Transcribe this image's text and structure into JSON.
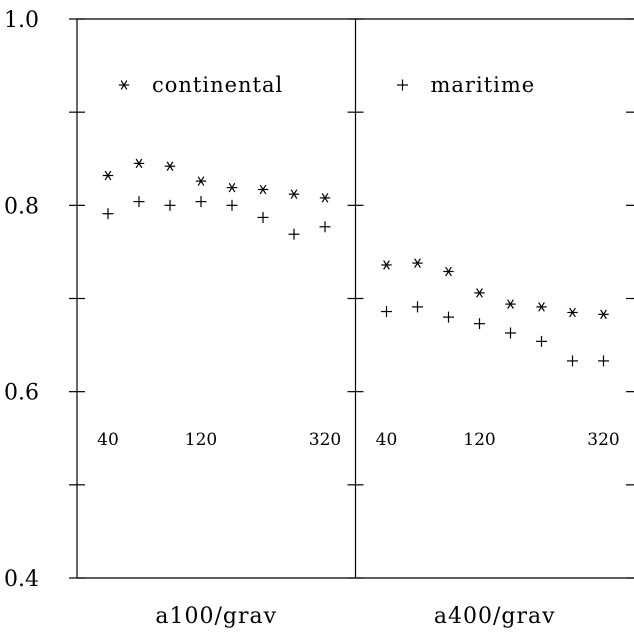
{
  "chart_data": {
    "type": "scatter",
    "ylim": [
      0.4,
      1.0
    ],
    "y_ticks": [
      "0.4",
      "0.6",
      "0.8",
      "1.0"
    ],
    "y_tick_values": [
      0.4,
      0.6,
      0.8,
      1.0
    ],
    "y_minor_ticks": [
      0.5,
      0.7,
      0.9
    ],
    "legend": {
      "continental": {
        "symbol": "*",
        "label": "continental"
      },
      "maritime": {
        "symbol": "+",
        "label": "maritime"
      }
    },
    "panels": [
      {
        "label": "a100/grav",
        "inner_ticks": [
          "40",
          "120",
          "320"
        ],
        "series": [
          {
            "key": "continental",
            "symbol": "*",
            "values": [
              0.832,
              0.845,
              0.842,
              0.826,
              0.819,
              0.817,
              0.812,
              0.808
            ]
          },
          {
            "key": "maritime",
            "symbol": "+",
            "values": [
              0.791,
              0.804,
              0.8,
              0.804,
              0.8,
              0.787,
              0.769,
              0.777
            ]
          }
        ]
      },
      {
        "label": "a400/grav",
        "inner_ticks": [
          "40",
          "120",
          "320"
        ],
        "series": [
          {
            "key": "continental",
            "symbol": "*",
            "values": [
              0.736,
              0.738,
              0.729,
              0.706,
              0.694,
              0.691,
              0.685,
              0.683
            ]
          },
          {
            "key": "maritime",
            "symbol": "+",
            "values": [
              0.686,
              0.691,
              0.68,
              0.673,
              0.663,
              0.654,
              0.633,
              0.633
            ]
          }
        ]
      }
    ]
  }
}
